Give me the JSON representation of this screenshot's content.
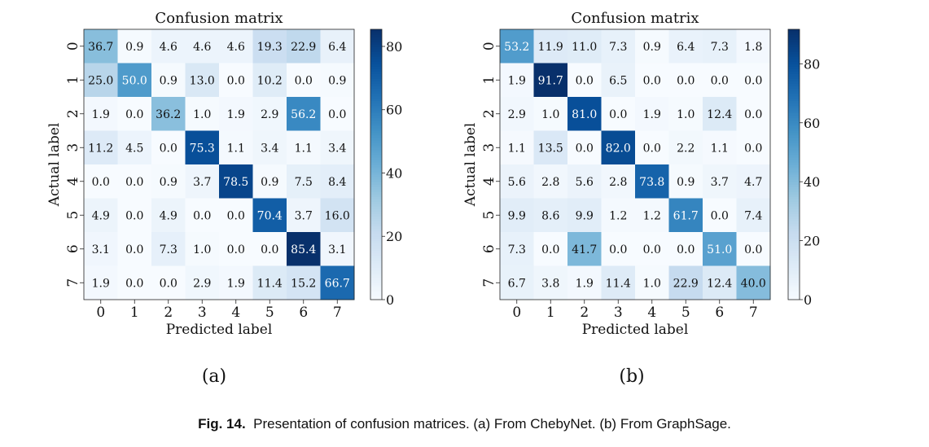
{
  "chart_data": [
    {
      "type": "heatmap",
      "title": "Confusion matrix",
      "xlabel": "Predicted label",
      "ylabel": "Actual label",
      "categories": [
        "0",
        "1",
        "2",
        "3",
        "4",
        "5",
        "6",
        "7"
      ],
      "values": [
        [
          36.7,
          0.9,
          4.6,
          4.6,
          4.6,
          19.3,
          22.9,
          6.4
        ],
        [
          25.0,
          50.0,
          0.9,
          13.0,
          0.0,
          10.2,
          0.0,
          0.9
        ],
        [
          1.9,
          0.0,
          36.2,
          1.0,
          1.9,
          2.9,
          56.2,
          0.0
        ],
        [
          11.2,
          4.5,
          0.0,
          75.3,
          1.1,
          3.4,
          1.1,
          3.4
        ],
        [
          0.0,
          0.0,
          0.9,
          3.7,
          78.5,
          0.9,
          7.5,
          8.4
        ],
        [
          4.9,
          0.0,
          4.9,
          0.0,
          0.0,
          70.4,
          3.7,
          16.0
        ],
        [
          3.1,
          0.0,
          7.3,
          1.0,
          0.0,
          0.0,
          85.4,
          3.1
        ],
        [
          1.9,
          0.0,
          0.0,
          2.9,
          1.9,
          11.4,
          15.2,
          66.7
        ]
      ],
      "colorbar": {
        "range": [
          0,
          85.4
        ],
        "ticks": [
          0,
          20,
          40,
          60,
          80
        ]
      },
      "sublabel": "(a)"
    },
    {
      "type": "heatmap",
      "title": "Confusion matrix",
      "xlabel": "Predicted label",
      "ylabel": "Actual label",
      "categories": [
        "0",
        "1",
        "2",
        "3",
        "4",
        "5",
        "6",
        "7"
      ],
      "values": [
        [
          53.2,
          11.9,
          11.0,
          7.3,
          0.9,
          6.4,
          7.3,
          1.8
        ],
        [
          1.9,
          91.7,
          0.0,
          6.5,
          0.0,
          0.0,
          0.0,
          0.0
        ],
        [
          2.9,
          1.0,
          81.0,
          0.0,
          1.9,
          1.0,
          12.4,
          0.0
        ],
        [
          1.1,
          13.5,
          0.0,
          82.0,
          0.0,
          2.2,
          1.1,
          0.0
        ],
        [
          5.6,
          2.8,
          5.6,
          2.8,
          73.8,
          0.9,
          3.7,
          4.7
        ],
        [
          9.9,
          8.6,
          9.9,
          1.2,
          1.2,
          61.7,
          0.0,
          7.4
        ],
        [
          7.3,
          0.0,
          41.7,
          0.0,
          0.0,
          0.0,
          51.0,
          0.0
        ],
        [
          6.7,
          3.8,
          1.9,
          11.4,
          1.0,
          22.9,
          12.4,
          40.0
        ]
      ],
      "colorbar": {
        "range": [
          0,
          91.7
        ],
        "ticks": [
          0,
          20,
          40,
          60,
          80
        ]
      },
      "sublabel": "(b)"
    }
  ],
  "caption": {
    "label": "Fig. 14.",
    "text": "Presentation of confusion matrices. (a) From ChebyNet. (b) From GraphSage."
  }
}
